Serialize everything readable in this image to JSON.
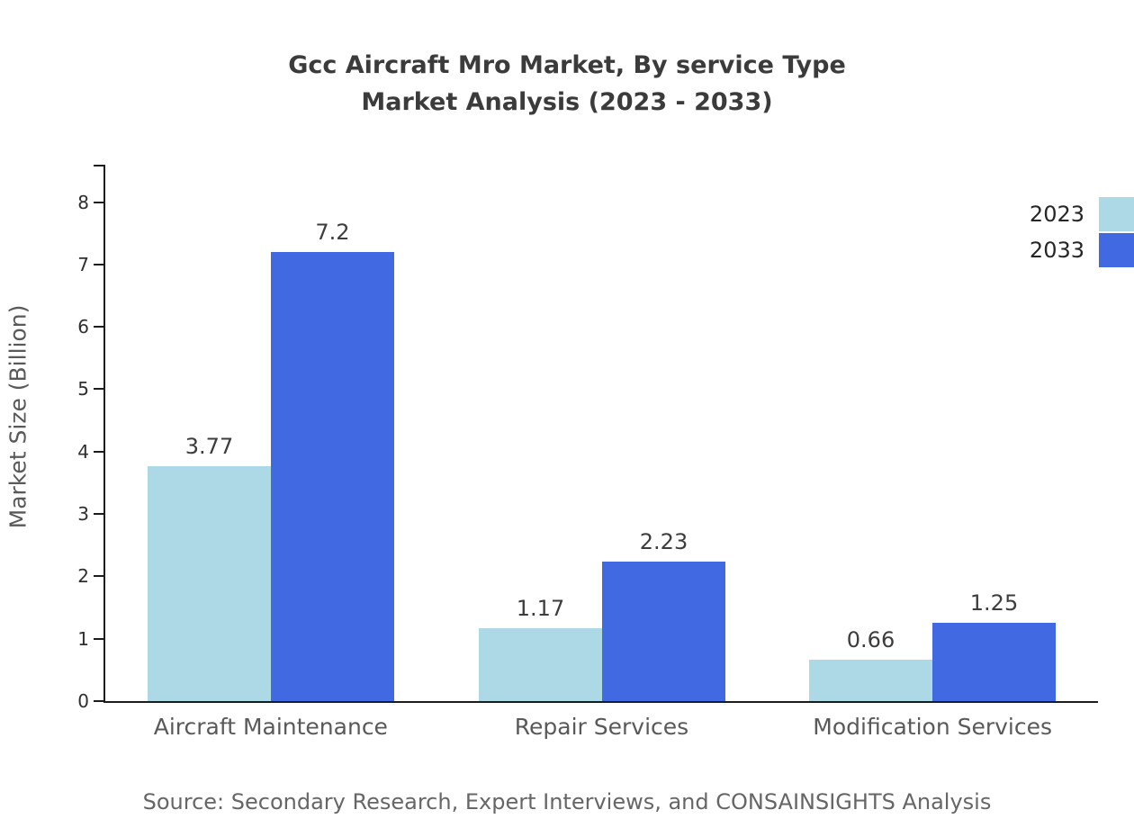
{
  "chart_data": {
    "type": "bar",
    "title": "Gcc Aircraft Mro Market, By service Type",
    "subtitle": "Market Analysis (2023 - 2033)",
    "categories": [
      "Aircraft Maintenance",
      "Repair Services",
      "Modification Services"
    ],
    "series": [
      {
        "name": "2023",
        "color": "#add8e6",
        "values": [
          3.77,
          1.17,
          0.66
        ]
      },
      {
        "name": "2033",
        "color": "#4169e1",
        "values": [
          7.2,
          2.23,
          1.25
        ]
      }
    ],
    "ylabel": "Market Size (Billion)",
    "xlabel": "",
    "yticks": [
      0,
      1,
      2,
      3,
      4,
      5,
      6,
      7,
      8
    ],
    "ylim": [
      0,
      8.6
    ],
    "grid": false,
    "legend_position": "top-right"
  },
  "source_note": "Source: Secondary Research, Expert Interviews, and CONSAINSIGHTS Analysis"
}
